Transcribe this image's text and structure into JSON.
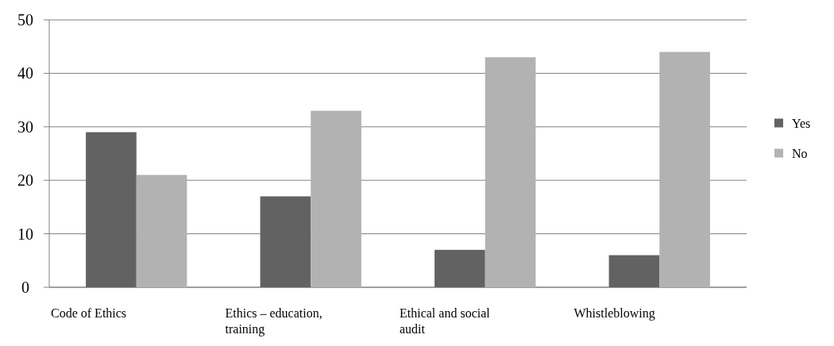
{
  "chart_data": {
    "type": "bar",
    "categories": [
      "Code of Ethics",
      "Ethics – education, training",
      "Ethical and social audit",
      "Whistleblowing"
    ],
    "series": [
      {
        "name": "Yes",
        "color": "#626262",
        "values": [
          29,
          17,
          7,
          6
        ]
      },
      {
        "name": "No",
        "color": "#b2b2b2",
        "values": [
          21,
          33,
          43,
          44
        ]
      }
    ],
    "ylim": [
      0,
      50
    ],
    "yticks": [
      0,
      10,
      20,
      30,
      40,
      50
    ],
    "grid": "y",
    "legend": "right"
  }
}
